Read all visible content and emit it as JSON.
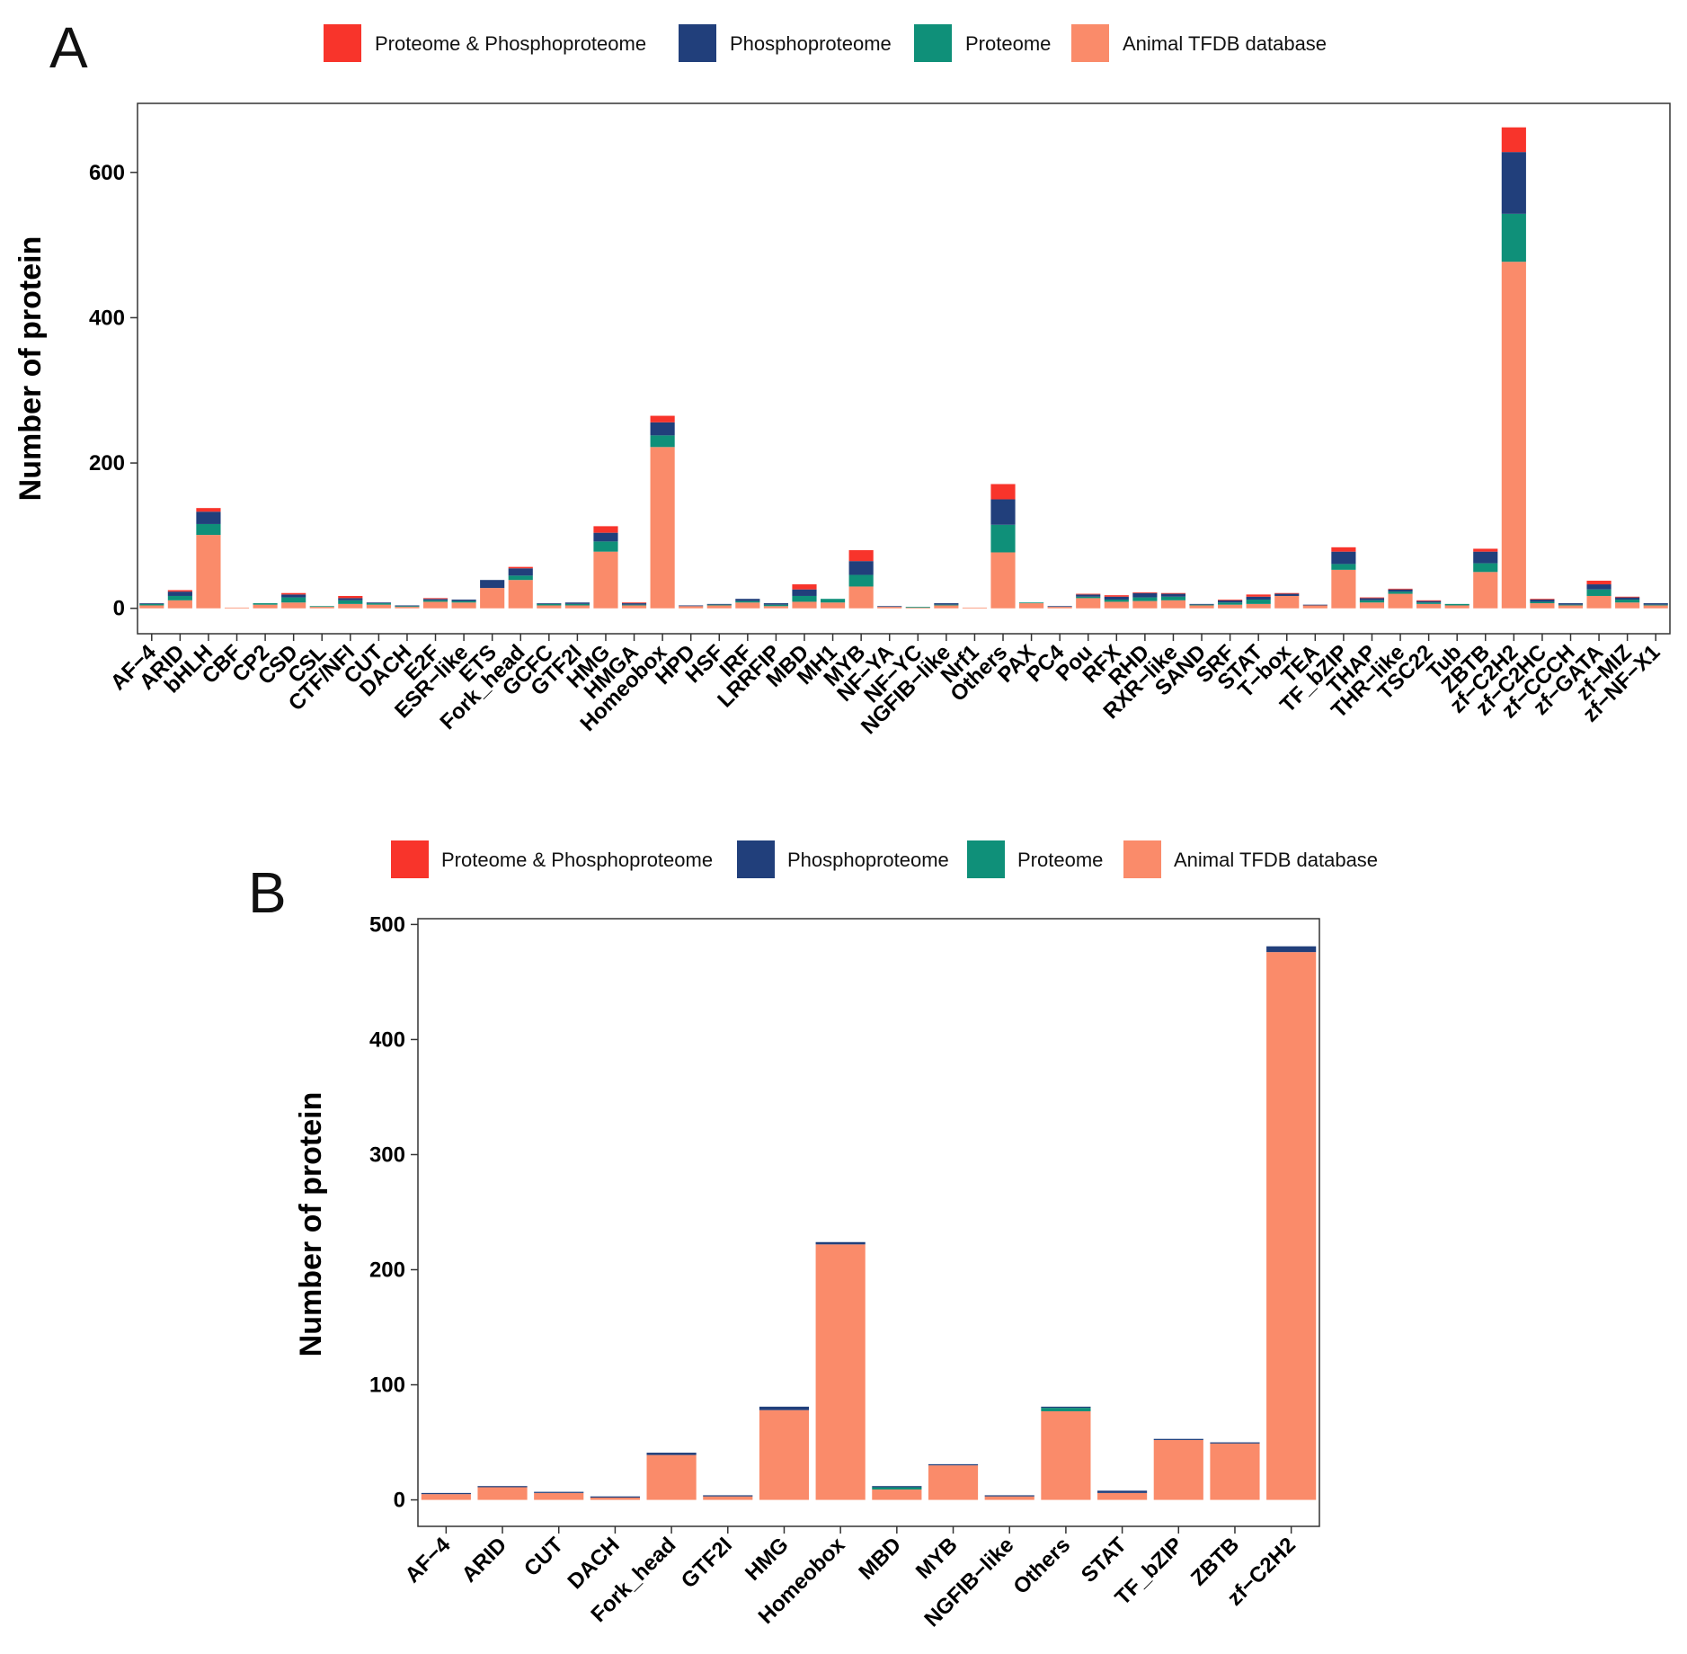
{
  "colors": {
    "both": "#f8342b",
    "phospho": "#213f7b",
    "proteome": "#0f9079",
    "tfdb": "#fa8b6a"
  },
  "chart_data": [
    {
      "type": "bar",
      "stacked": true,
      "panel_label": "A",
      "ylabel": "Number of protein",
      "xlabel": "",
      "ylim": [
        -35,
        695
      ],
      "yticks": [
        0,
        200,
        400,
        600
      ],
      "legend": [
        "Proteome & Phosphoproteome",
        "Phosphoproteome",
        "Proteome",
        "Animal TFDB database"
      ],
      "legend_position": "top",
      "categories": [
        "AF−4",
        "ARID",
        "bHLH",
        "CBF",
        "CP2",
        "CSD",
        "CSL",
        "CTF/NFI",
        "CUT",
        "DACH",
        "E2F",
        "ESR−like",
        "ETS",
        "Fork_head",
        "GCFC",
        "GTF2I",
        "HMG",
        "HMGA",
        "Homeobox",
        "HPD",
        "HSF",
        "IRF",
        "LRRFIP",
        "MBD",
        "MH1",
        "MYB",
        "NF−YA",
        "NF−YC",
        "NGFIB−like",
        "Nrf1",
        "Others",
        "PAX",
        "PC4",
        "Pou",
        "RFX",
        "RHD",
        "RXR−like",
        "SAND",
        "SRF",
        "STAT",
        "T−box",
        "TEA",
        "TF_bZIP",
        "THAP",
        "THR−like",
        "TSC22",
        "Tub",
        "ZBTB",
        "zf−C2H2",
        "zf−C2HC",
        "zf−CCCH",
        "zf−GATA",
        "zf−MIZ",
        "zf−NF−X1"
      ],
      "series": [
        {
          "name": "Animal TFDB database",
          "color": "tfdb",
          "values": [
            4,
            11,
            101,
            1,
            5,
            8,
            2,
            6,
            5,
            2,
            9,
            8,
            28,
            39,
            4,
            4,
            78,
            4,
            222,
            3,
            4,
            8,
            3,
            9,
            8,
            30,
            2,
            1,
            4,
            1,
            77,
            7,
            2,
            14,
            9,
            10,
            11,
            4,
            5,
            6,
            17,
            4,
            53,
            8,
            20,
            6,
            4,
            50,
            477,
            7,
            4,
            17,
            8,
            4
          ]
        },
        {
          "name": "Proteome",
          "color": "proteome",
          "values": [
            2,
            6,
            15,
            0,
            2,
            7,
            1,
            5,
            2,
            1,
            2,
            2,
            0,
            6,
            2,
            2,
            14,
            1,
            16,
            0,
            1,
            2,
            2,
            8,
            5,
            16,
            0,
            1,
            1,
            0,
            38,
            1,
            0,
            2,
            3,
            5,
            5,
            1,
            3,
            6,
            0,
            0,
            8,
            3,
            3,
            2,
            2,
            12,
            66,
            2,
            1,
            9,
            4,
            1
          ]
        },
        {
          "name": "Phosphoproteome",
          "color": "phospho",
          "values": [
            1,
            6,
            17,
            0,
            0,
            4,
            0,
            3,
            1,
            1,
            2,
            2,
            11,
            10,
            1,
            2,
            12,
            2,
            18,
            1,
            1,
            3,
            2,
            9,
            0,
            19,
            1,
            0,
            2,
            0,
            35,
            0,
            1,
            3,
            4,
            6,
            4,
            1,
            3,
            4,
            3,
            1,
            17,
            3,
            3,
            2,
            0,
            16,
            85,
            3,
            2,
            7,
            3,
            2
          ]
        },
        {
          "name": "Proteome & Phosphoproteome",
          "color": "both",
          "values": [
            0,
            2,
            5,
            0,
            0,
            2,
            0,
            3,
            0,
            0,
            1,
            0,
            0,
            2,
            0,
            0,
            9,
            1,
            9,
            0,
            0,
            0,
            0,
            7,
            0,
            15,
            0,
            0,
            0,
            0,
            21,
            0,
            0,
            1,
            2,
            1,
            1,
            0,
            1,
            3,
            1,
            0,
            6,
            1,
            1,
            1,
            0,
            4,
            34,
            1,
            0,
            5,
            1,
            0
          ]
        }
      ]
    },
    {
      "type": "bar",
      "stacked": true,
      "panel_label": "B",
      "ylabel": "Number of protein",
      "xlabel": "",
      "ylim": [
        -23,
        505
      ],
      "yticks": [
        0,
        100,
        200,
        300,
        400,
        500
      ],
      "legend": [
        "Proteome & Phosphoproteome",
        "Phosphoproteome",
        "Proteome",
        "Animal TFDB database"
      ],
      "legend_position": "top",
      "categories": [
        "AF−4",
        "ARID",
        "CUT",
        "DACH",
        "Fork_head",
        "GTF2I",
        "HMG",
        "Homeobox",
        "MBD",
        "MYB",
        "NGFIB−like",
        "Others",
        "STAT",
        "TF_bZIP",
        "ZBTB",
        "zf−C2H2"
      ],
      "series": [
        {
          "name": "Animal TFDB database",
          "color": "tfdb",
          "values": [
            5,
            11,
            6,
            2,
            39,
            3,
            78,
            222,
            9,
            30,
            3,
            77,
            6,
            52,
            49,
            476
          ]
        },
        {
          "name": "Proteome",
          "color": "proteome",
          "values": [
            0,
            0,
            0,
            0,
            0,
            0,
            0,
            0,
            2,
            0,
            0,
            3,
            0,
            0,
            0,
            0
          ]
        },
        {
          "name": "Phosphoproteome",
          "color": "phospho",
          "values": [
            1,
            1,
            1,
            1,
            2,
            1,
            3,
            2,
            1,
            1,
            1,
            1,
            2,
            1,
            1,
            5
          ]
        },
        {
          "name": "Proteome & Phosphoproteome",
          "color": "both",
          "values": [
            0,
            0,
            0,
            0,
            0,
            0,
            0,
            0,
            0,
            0,
            0,
            0,
            0,
            0,
            0,
            0
          ]
        }
      ]
    }
  ]
}
